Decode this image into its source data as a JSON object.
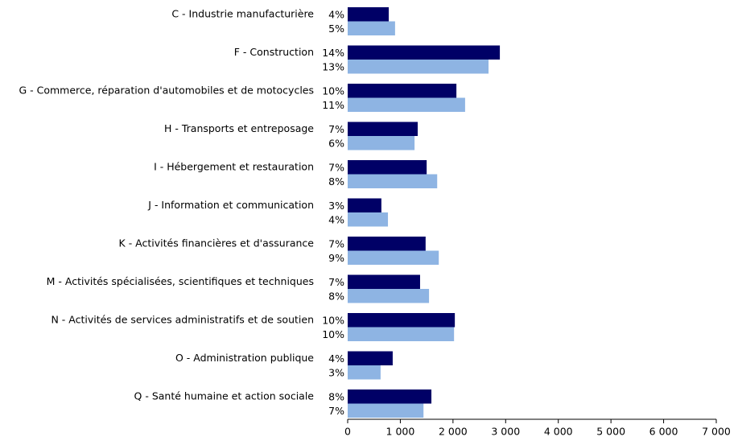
{
  "chart_data": {
    "type": "hbar",
    "categories": [
      "C - Industrie manufacturière",
      "F - Construction",
      "G - Commerce, réparation d'automobiles et de motocycles",
      "H - Transports et entreposage",
      "I - Hébergement et restauration",
      "J - Information et communication",
      "K - Activités financières et d'assurance",
      "M - Activités spécialisées, scientifiques et techniques",
      "N - Activités de services administratifs et de soutien",
      "O - Administration publique",
      "Q - Santé humaine et action sociale"
    ],
    "series": [
      {
        "color": "#000066",
        "values": [
          780,
          2890,
          2065,
          1330,
          1500,
          640,
          1480,
          1375,
          2035,
          855,
          1590
        ],
        "percent_labels": [
          "4%",
          "14%",
          "10%",
          "7%",
          "7%",
          "3%",
          "7%",
          "7%",
          "10%",
          "4%",
          "8%"
        ]
      },
      {
        "color": "#8eb4e3",
        "values": [
          900,
          2675,
          2230,
          1270,
          1700,
          765,
          1730,
          1545,
          2020,
          625,
          1440
        ],
        "percent_labels": [
          "5%",
          "13%",
          "11%",
          "6%",
          "8%",
          "4%",
          "9%",
          "8%",
          "10%",
          "3%",
          "7%"
        ]
      }
    ],
    "xlim": [
      0,
      7000
    ],
    "xticks": [
      0,
      {
        "value": 1000,
        "label": "1 000"
      },
      {
        "value": 2000,
        "label": "2 000"
      },
      {
        "value": 3000,
        "label": "3 000"
      },
      {
        "value": 4000,
        "label": "4 000"
      },
      {
        "value": 5000,
        "label": "5 000"
      },
      {
        "value": 6000,
        "label": "6 000"
      },
      {
        "value": 7000,
        "label": "7 000"
      }
    ]
  }
}
